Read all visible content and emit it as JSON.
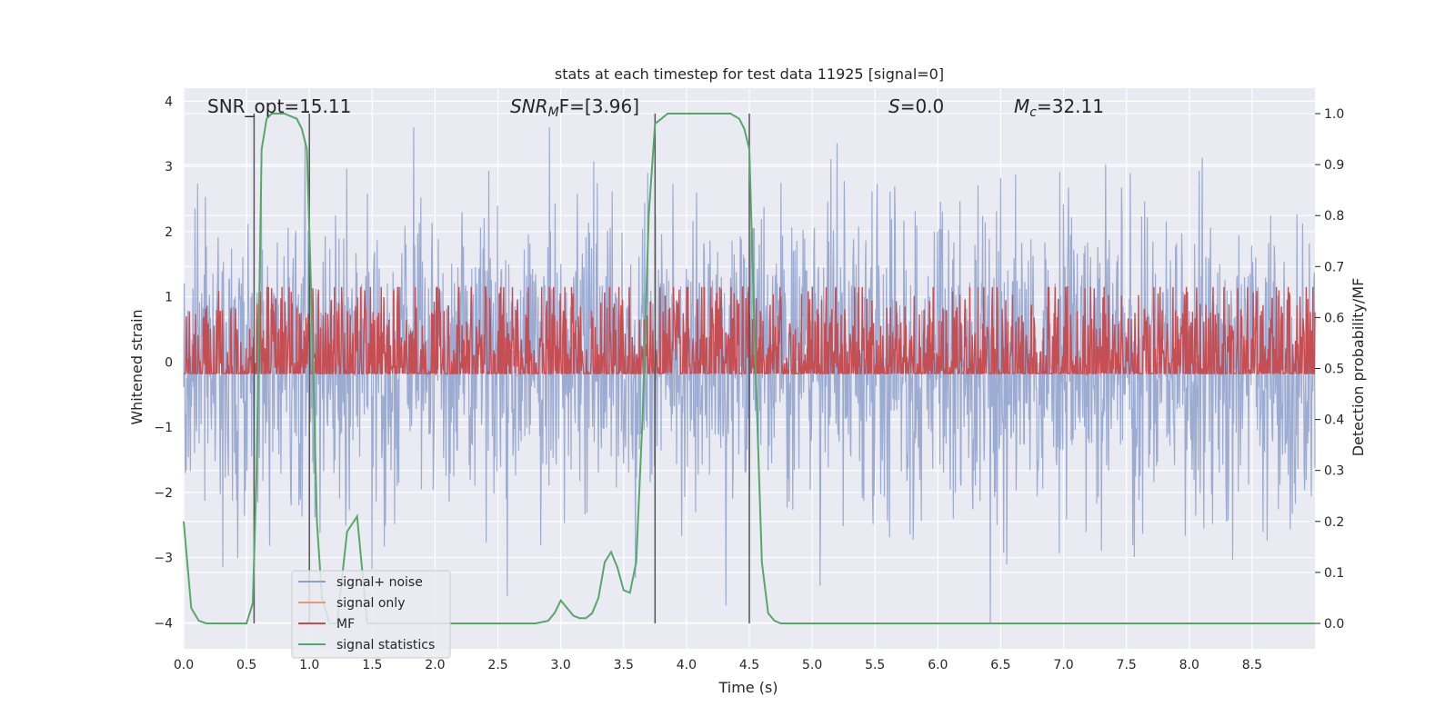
{
  "chart_data": {
    "type": "line",
    "title": "stats at each timestep for test data 11925 [signal=0]",
    "xlabel": "Time (s)",
    "ylabel": "Whitened strain",
    "y2label": "Detection probability/MF",
    "xlim": [
      0,
      9.0
    ],
    "ylim": [
      -4.4,
      4.2
    ],
    "y2lim": [
      -0.05,
      1.05
    ],
    "xticks": [
      "0.0",
      "0.5",
      "1.0",
      "1.5",
      "2.0",
      "2.5",
      "3.0",
      "3.5",
      "4.0",
      "4.5",
      "5.0",
      "5.5",
      "6.0",
      "6.5",
      "7.0",
      "7.5",
      "8.0",
      "8.5"
    ],
    "yticks": [
      "4",
      "3",
      "2",
      "1",
      "0",
      "−1",
      "−2",
      "−3",
      "−4"
    ],
    "y2ticks": [
      "1.0",
      "0.9",
      "0.8",
      "0.7",
      "0.6",
      "0.5",
      "0.4",
      "0.3",
      "0.2",
      "0.1",
      "0.0"
    ],
    "grid": true,
    "annotations": {
      "snr_opt": "SNR_opt=15.11",
      "snr_mf_prefix": "SNR",
      "snr_mf_sub": "M",
      "snr_mf_rest": "F=[3.96]",
      "s_prefix": "S",
      "s_rest": "=0.0",
      "mc_prefix": "M",
      "mc_sub": "c",
      "mc_rest": "=32.11"
    },
    "legend_position": "lower-left",
    "series": [
      {
        "name": "signal+ noise",
        "color": "#8da0cb",
        "description_values": {
          "mean": 0,
          "std": 1.0,
          "min": -4.0,
          "max": 3.6
        }
      },
      {
        "name": "signal only",
        "color": "#e99675",
        "values": []
      },
      {
        "name": "MF",
        "color": "#c44e52",
        "description_values": {
          "mean": 0.3,
          "min": 0.0,
          "max": 1.0
        }
      },
      {
        "name": "signal statistics",
        "color": "#55a868",
        "x": [
          0.0,
          0.06,
          0.12,
          0.18,
          0.3,
          0.4,
          0.5,
          0.55,
          0.58,
          0.62,
          0.66,
          0.7,
          0.8,
          0.9,
          0.94,
          0.98,
          1.02,
          1.06,
          1.1,
          1.16,
          1.22,
          1.3,
          1.38,
          1.46,
          1.52,
          1.6,
          1.7,
          1.9,
          2.2,
          2.5,
          2.8,
          2.9,
          2.95,
          3.0,
          3.05,
          3.1,
          3.15,
          3.2,
          3.25,
          3.3,
          3.35,
          3.4,
          3.45,
          3.5,
          3.55,
          3.6,
          3.65,
          3.7,
          3.75,
          3.8,
          3.85,
          3.9,
          4.0,
          4.2,
          4.35,
          4.42,
          4.46,
          4.5,
          4.55,
          4.6,
          4.65,
          4.7,
          4.75,
          4.85,
          5.0,
          6.0,
          7.0,
          8.0,
          9.0
        ],
        "y": [
          0.2,
          0.03,
          0.005,
          0.0,
          0.0,
          0.0,
          0.0,
          0.04,
          0.3,
          0.93,
          0.99,
          1.0,
          1.0,
          0.99,
          0.97,
          0.93,
          0.6,
          0.2,
          0.05,
          0.0,
          0.0,
          0.18,
          0.21,
          0.0,
          0.0,
          0.0,
          0.0,
          0.0,
          0.0,
          0.0,
          0.0,
          0.005,
          0.02,
          0.045,
          0.03,
          0.015,
          0.01,
          0.01,
          0.02,
          0.05,
          0.12,
          0.14,
          0.11,
          0.065,
          0.06,
          0.12,
          0.4,
          0.8,
          0.98,
          0.99,
          1.0,
          1.0,
          1.0,
          1.0,
          1.0,
          0.99,
          0.97,
          0.93,
          0.5,
          0.12,
          0.02,
          0.005,
          0.0,
          0.0,
          0.0,
          0.0,
          0.0,
          0.0,
          0.0
        ]
      }
    ],
    "vertical_markers": [
      0.56,
      1.0,
      3.75,
      4.5
    ]
  }
}
